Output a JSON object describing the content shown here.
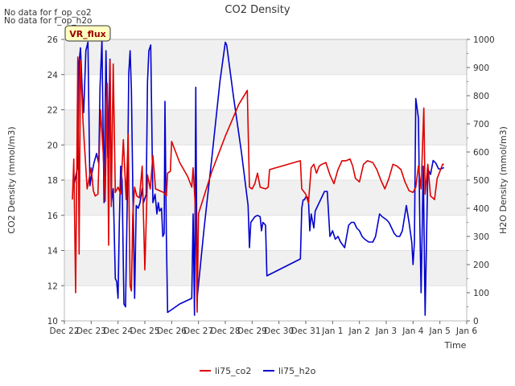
{
  "chart_data": {
    "type": "line",
    "title": "CO2 Density",
    "xlabel": "Time",
    "ylabel_left": "CO2 Density (mmol/m3)",
    "ylabel_right": "H2O Density (mmol/m3)",
    "no_data_notes": [
      "No data for f_op_co2",
      "No data for f_op_h2o"
    ],
    "site_label": "VR_flux",
    "x_range": [
      0,
      15
    ],
    "y_left_range": [
      10,
      26
    ],
    "y_right_range": [
      0,
      1000
    ],
    "x_ticks": [
      {
        "x": 0,
        "label": "Dec 22"
      },
      {
        "x": 1,
        "label": "Dec 23"
      },
      {
        "x": 2,
        "label": "Dec 24"
      },
      {
        "x": 3,
        "label": "Dec 25"
      },
      {
        "x": 4,
        "label": "Dec 26"
      },
      {
        "x": 5,
        "label": "Dec 27"
      },
      {
        "x": 6,
        "label": "Dec 28"
      },
      {
        "x": 7,
        "label": "Dec 29"
      },
      {
        "x": 8,
        "label": "Dec 30"
      },
      {
        "x": 9,
        "label": "Dec 31"
      },
      {
        "x": 10,
        "label": "Jan 1"
      },
      {
        "x": 11,
        "label": "Jan 2"
      },
      {
        "x": 12,
        "label": "Jan 3"
      },
      {
        "x": 13,
        "label": "Jan 4"
      },
      {
        "x": 14,
        "label": "Jan 5"
      },
      {
        "x": 15,
        "label": "Jan 6"
      }
    ],
    "y_left_ticks": [
      {
        "v": 10,
        "label": "10"
      },
      {
        "v": 12,
        "label": "12"
      },
      {
        "v": 14,
        "label": "14"
      },
      {
        "v": 16,
        "label": "16"
      },
      {
        "v": 18,
        "label": "18"
      },
      {
        "v": 20,
        "label": "20"
      },
      {
        "v": 22,
        "label": "22"
      },
      {
        "v": 24,
        "label": "24"
      },
      {
        "v": 26,
        "label": "26"
      }
    ],
    "y_right_ticks": [
      {
        "v": 0,
        "label": "0"
      },
      {
        "v": 100,
        "label": "100"
      },
      {
        "v": 200,
        "label": "200"
      },
      {
        "v": 300,
        "label": "300"
      },
      {
        "v": 400,
        "label": "400"
      },
      {
        "v": 500,
        "label": "500"
      },
      {
        "v": 600,
        "label": "600"
      },
      {
        "v": 700,
        "label": "700"
      },
      {
        "v": 800,
        "label": "800"
      },
      {
        "v": 900,
        "label": "900"
      },
      {
        "v": 1000,
        "label": "1000"
      }
    ],
    "grid_bands": true,
    "series": [
      {
        "name": "li75_co2",
        "axis": "left",
        "color": "#dd0000",
        "points": [
          [
            0.3,
            16.9
          ],
          [
            0.35,
            19.2
          ],
          [
            0.42,
            11.6
          ],
          [
            0.5,
            25.0
          ],
          [
            0.55,
            13.8
          ],
          [
            0.6,
            24.8
          ],
          [
            0.7,
            21.2
          ],
          [
            0.85,
            17.5
          ],
          [
            1.0,
            18.7
          ],
          [
            1.08,
            17.4
          ],
          [
            1.15,
            17.1
          ],
          [
            1.25,
            17.2
          ],
          [
            1.35,
            22.0
          ],
          [
            1.45,
            19.5
          ],
          [
            1.52,
            16.8
          ],
          [
            1.6,
            23.5
          ],
          [
            1.65,
            14.3
          ],
          [
            1.7,
            24.8
          ],
          [
            1.75,
            16.5
          ],
          [
            1.82,
            24.6
          ],
          [
            1.9,
            17.3
          ],
          [
            2.0,
            17.6
          ],
          [
            2.1,
            17.2
          ],
          [
            2.2,
            20.3
          ],
          [
            2.3,
            16.9
          ],
          [
            2.38,
            20.6
          ],
          [
            2.45,
            12.0
          ],
          [
            2.5,
            11.7
          ],
          [
            2.55,
            16.0
          ],
          [
            2.62,
            17.6
          ],
          [
            2.7,
            17.1
          ],
          [
            2.8,
            17.0
          ],
          [
            2.9,
            18.8
          ],
          [
            3.0,
            12.9
          ],
          [
            3.1,
            18.3
          ],
          [
            3.2,
            17.5
          ],
          [
            3.3,
            19.4
          ],
          [
            3.4,
            17.5
          ],
          [
            3.55,
            17.4
          ],
          [
            3.7,
            17.3
          ],
          [
            3.8,
            17.1
          ],
          [
            3.85,
            18.4
          ],
          [
            3.95,
            18.5
          ],
          [
            4.0,
            20.2
          ],
          [
            4.3,
            19.0
          ],
          [
            4.6,
            18.2
          ],
          [
            4.75,
            17.6
          ],
          [
            4.8,
            18.7
          ],
          [
            4.9,
            16.0
          ],
          [
            4.95,
            10.5
          ],
          [
            5.0,
            16.1
          ],
          [
            5.5,
            18.5
          ],
          [
            6.0,
            20.5
          ],
          [
            6.5,
            22.3
          ],
          [
            6.82,
            23.1
          ],
          [
            6.9,
            17.6
          ],
          [
            7.0,
            17.5
          ],
          [
            7.1,
            17.8
          ],
          [
            7.2,
            18.4
          ],
          [
            7.3,
            17.6
          ],
          [
            7.5,
            17.5
          ],
          [
            7.6,
            17.6
          ],
          [
            7.65,
            18.6
          ],
          [
            8.8,
            19.1
          ],
          [
            8.85,
            17.5
          ],
          [
            9.0,
            17.2
          ],
          [
            9.1,
            16.7
          ],
          [
            9.2,
            18.7
          ],
          [
            9.3,
            18.9
          ],
          [
            9.4,
            18.4
          ],
          [
            9.5,
            18.8
          ],
          [
            9.6,
            18.9
          ],
          [
            9.75,
            19.0
          ],
          [
            9.9,
            18.3
          ],
          [
            10.05,
            17.8
          ],
          [
            10.2,
            18.6
          ],
          [
            10.35,
            19.1
          ],
          [
            10.5,
            19.1
          ],
          [
            10.65,
            19.2
          ],
          [
            10.75,
            18.8
          ],
          [
            10.85,
            18.1
          ],
          [
            11.0,
            17.9
          ],
          [
            11.15,
            18.9
          ],
          [
            11.3,
            19.1
          ],
          [
            11.5,
            19.0
          ],
          [
            11.65,
            18.6
          ],
          [
            11.8,
            18.0
          ],
          [
            11.95,
            17.5
          ],
          [
            12.1,
            18.1
          ],
          [
            12.25,
            18.9
          ],
          [
            12.4,
            18.8
          ],
          [
            12.55,
            18.6
          ],
          [
            12.7,
            17.9
          ],
          [
            12.85,
            17.4
          ],
          [
            13.0,
            17.3
          ],
          [
            13.1,
            17.6
          ],
          [
            13.2,
            18.8
          ],
          [
            13.3,
            17.5
          ],
          [
            13.4,
            22.1
          ],
          [
            13.45,
            17.2
          ],
          [
            13.55,
            18.9
          ],
          [
            13.65,
            17.1
          ],
          [
            13.8,
            16.9
          ],
          [
            13.9,
            18.1
          ],
          [
            14.0,
            18.5
          ],
          [
            14.1,
            18.9
          ],
          [
            14.15,
            18.9
          ]
        ]
      },
      {
        "name": "li75_h2o",
        "axis": "right",
        "color": "#0000cc",
        "points": [
          [
            0.35,
            480
          ],
          [
            0.5,
            550
          ],
          [
            0.55,
            920
          ],
          [
            0.6,
            970
          ],
          [
            0.68,
            790
          ],
          [
            0.72,
            740
          ],
          [
            0.8,
            960
          ],
          [
            0.88,
            990
          ],
          [
            0.95,
            480
          ],
          [
            1.0,
            510
          ],
          [
            1.1,
            560
          ],
          [
            1.2,
            595
          ],
          [
            1.28,
            560
          ],
          [
            1.33,
            830
          ],
          [
            1.4,
            1000
          ],
          [
            1.48,
            420
          ],
          [
            1.55,
            960
          ],
          [
            1.62,
            580
          ],
          [
            1.7,
            930
          ],
          [
            1.75,
            420
          ],
          [
            1.82,
            470
          ],
          [
            1.9,
            150
          ],
          [
            1.95,
            140
          ],
          [
            2.0,
            80
          ],
          [
            2.05,
            350
          ],
          [
            2.1,
            550
          ],
          [
            2.15,
            500
          ],
          [
            2.22,
            60
          ],
          [
            2.28,
            50
          ],
          [
            2.35,
            450
          ],
          [
            2.4,
            880
          ],
          [
            2.45,
            960
          ],
          [
            2.5,
            820
          ],
          [
            2.55,
            480
          ],
          [
            2.62,
            80
          ],
          [
            2.68,
            410
          ],
          [
            2.75,
            400
          ],
          [
            2.82,
            420
          ],
          [
            2.9,
            470
          ],
          [
            2.95,
            420
          ],
          [
            3.05,
            450
          ],
          [
            3.1,
            850
          ],
          [
            3.15,
            960
          ],
          [
            3.22,
            980
          ],
          [
            3.3,
            420
          ],
          [
            3.38,
            450
          ],
          [
            3.45,
            380
          ],
          [
            3.5,
            420
          ],
          [
            3.55,
            390
          ],
          [
            3.62,
            400
          ],
          [
            3.67,
            300
          ],
          [
            3.72,
            310
          ],
          [
            3.75,
            780
          ],
          [
            3.8,
            310
          ],
          [
            3.85,
            30
          ],
          [
            4.3,
            60
          ],
          [
            4.75,
            80
          ],
          [
            4.8,
            380
          ],
          [
            4.85,
            20
          ],
          [
            4.9,
            830
          ],
          [
            4.95,
            80
          ],
          [
            5.2,
            320
          ],
          [
            5.5,
            580
          ],
          [
            5.8,
            850
          ],
          [
            6.0,
            990
          ],
          [
            6.05,
            980
          ],
          [
            6.3,
            800
          ],
          [
            6.6,
            600
          ],
          [
            6.85,
            410
          ],
          [
            6.9,
            260
          ],
          [
            6.95,
            350
          ],
          [
            7.1,
            370
          ],
          [
            7.2,
            375
          ],
          [
            7.3,
            370
          ],
          [
            7.35,
            320
          ],
          [
            7.4,
            350
          ],
          [
            7.5,
            340
          ],
          [
            7.55,
            160
          ],
          [
            8.8,
            220
          ],
          [
            8.85,
            400
          ],
          [
            8.9,
            430
          ],
          [
            8.95,
            430
          ],
          [
            9.0,
            440
          ],
          [
            9.05,
            440
          ],
          [
            9.1,
            430
          ],
          [
            9.15,
            320
          ],
          [
            9.2,
            380
          ],
          [
            9.3,
            330
          ],
          [
            9.35,
            390
          ],
          [
            9.45,
            410
          ],
          [
            9.6,
            440
          ],
          [
            9.7,
            460
          ],
          [
            9.8,
            460
          ],
          [
            9.9,
            300
          ],
          [
            10.0,
            320
          ],
          [
            10.1,
            290
          ],
          [
            10.2,
            300
          ],
          [
            10.3,
            280
          ],
          [
            10.45,
            260
          ],
          [
            10.6,
            340
          ],
          [
            10.7,
            350
          ],
          [
            10.8,
            350
          ],
          [
            10.9,
            330
          ],
          [
            11.0,
            320
          ],
          [
            11.1,
            300
          ],
          [
            11.2,
            290
          ],
          [
            11.35,
            280
          ],
          [
            11.5,
            280
          ],
          [
            11.6,
            300
          ],
          [
            11.75,
            380
          ],
          [
            11.85,
            370
          ],
          [
            12.0,
            360
          ],
          [
            12.1,
            350
          ],
          [
            12.2,
            330
          ],
          [
            12.3,
            310
          ],
          [
            12.4,
            300
          ],
          [
            12.5,
            300
          ],
          [
            12.6,
            320
          ],
          [
            12.75,
            410
          ],
          [
            12.85,
            350
          ],
          [
            12.95,
            280
          ],
          [
            13.0,
            200
          ],
          [
            13.05,
            280
          ],
          [
            13.1,
            790
          ],
          [
            13.2,
            720
          ],
          [
            13.25,
            350
          ],
          [
            13.3,
            100
          ],
          [
            13.38,
            550
          ],
          [
            13.45,
            20
          ],
          [
            13.55,
            540
          ],
          [
            13.65,
            520
          ],
          [
            13.75,
            570
          ],
          [
            13.85,
            560
          ],
          [
            13.95,
            540
          ],
          [
            14.05,
            540
          ],
          [
            14.15,
            545
          ]
        ]
      }
    ]
  }
}
